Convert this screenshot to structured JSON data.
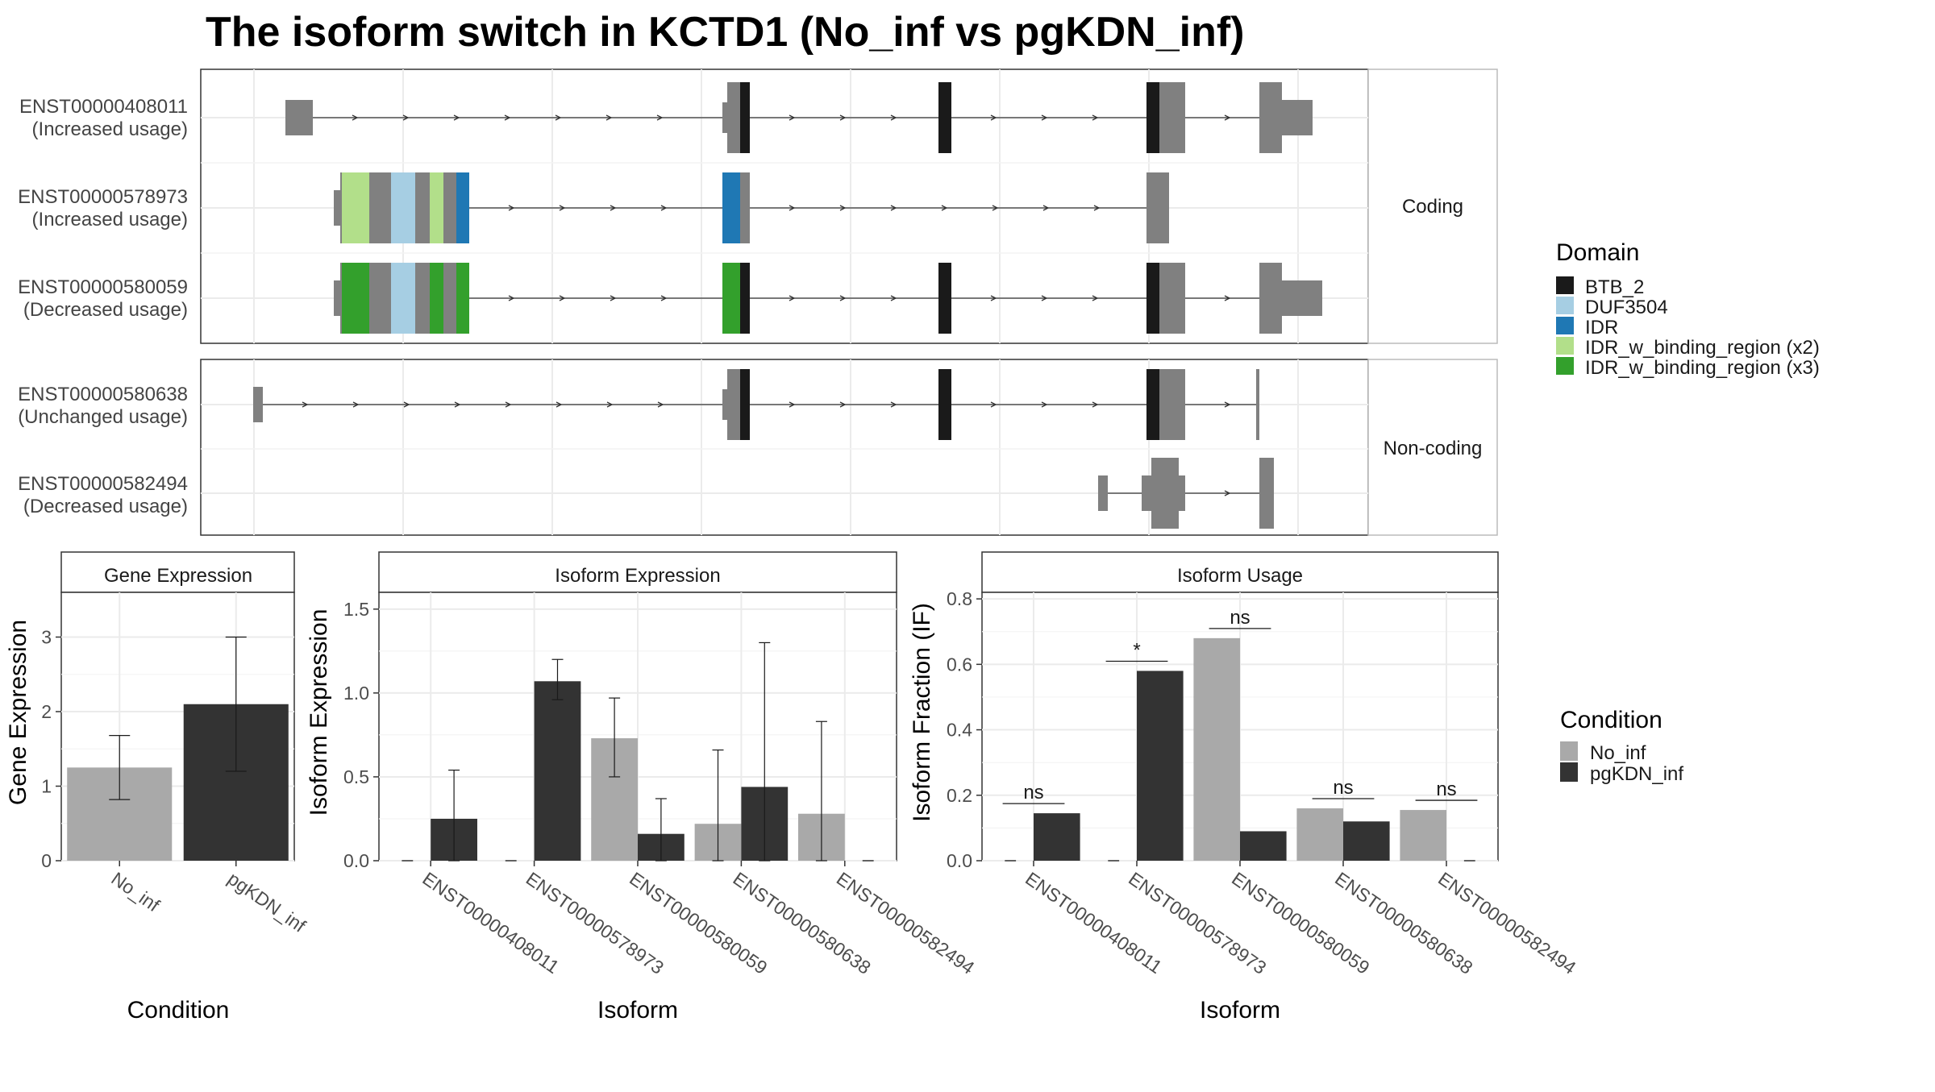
{
  "title": "The isoform switch in KCTD1 (No_inf vs pgKDN_inf)",
  "colors": {
    "BTB_2": "#1a1a1a",
    "DUF3504": "#a6cee3",
    "IDR": "#1f78b4",
    "IDR_x2": "#b2df8a",
    "IDR_x3": "#33a02c",
    "utr": "#808080",
    "No_inf": "#a9a9a9",
    "pgKDN_inf": "#333333"
  },
  "structure": {
    "coding_panel_label": "Coding",
    "noncoding_panel_label": "Non-coding",
    "transcripts": [
      {
        "id": "ENST00000408011",
        "usage": "(Increased usage)"
      },
      {
        "id": "ENST00000578973",
        "usage": "(Increased usage)"
      },
      {
        "id": "ENST00000580059",
        "usage": "(Decreased usage)"
      },
      {
        "id": "ENST00000580638",
        "usage": "(Unchanged usage)"
      },
      {
        "id": "ENST00000582494",
        "usage": "(Decreased usage)"
      }
    ]
  },
  "domain_legend": {
    "title": "Domain",
    "items": [
      {
        "label": "BTB_2",
        "color": "#1a1a1a"
      },
      {
        "label": "DUF3504",
        "color": "#a6cee3"
      },
      {
        "label": "IDR",
        "color": "#1f78b4"
      },
      {
        "label": "IDR_w_binding_region (x2)",
        "color": "#b2df8a"
      },
      {
        "label": "IDR_w_binding_region (x3)",
        "color": "#33a02c"
      }
    ]
  },
  "condition_legend": {
    "title": "Condition",
    "items": [
      {
        "label": "No_inf",
        "color": "#a9a9a9"
      },
      {
        "label": "pgKDN_inf",
        "color": "#333333"
      }
    ]
  },
  "chart_data": [
    {
      "type": "bar",
      "title": "Gene Expression",
      "xlabel": "Condition",
      "ylabel": "Gene Expression",
      "ylim": [
        0,
        3.6
      ],
      "yticks": [
        0,
        1,
        2,
        3
      ],
      "categories": [
        "No_inf",
        "pgKDN_inf"
      ],
      "values": [
        1.25,
        2.1
      ],
      "errors": [
        [
          0.82,
          1.68
        ],
        [
          1.2,
          3.0
        ]
      ]
    },
    {
      "type": "bar",
      "title": "Isoform Expression",
      "xlabel": "Isoform",
      "ylabel": "Isoform Expression",
      "ylim": [
        0,
        1.6
      ],
      "yticks": [
        "0.0",
        "0.5",
        "1.0",
        "1.5"
      ],
      "categories": [
        "ENST00000408011",
        "ENST00000578973",
        "ENST00000580059",
        "ENST00000580638",
        "ENST00000582494"
      ],
      "series": [
        {
          "name": "No_inf",
          "values": [
            0.0,
            0.0,
            0.73,
            0.22,
            0.28
          ],
          "errors": [
            [
              0,
              0
            ],
            [
              0,
              0
            ],
            [
              0.5,
              0.97
            ],
            [
              0,
              0.66
            ],
            [
              0,
              0.83
            ]
          ]
        },
        {
          "name": "pgKDN_inf",
          "values": [
            0.25,
            1.07,
            0.16,
            0.44,
            0.0
          ],
          "errors": [
            [
              0,
              0.54
            ],
            [
              0.96,
              1.2
            ],
            [
              0,
              0.37
            ],
            [
              0,
              1.3
            ],
            [
              0,
              0
            ]
          ]
        }
      ]
    },
    {
      "type": "bar",
      "title": "Isoform Usage",
      "xlabel": "Isoform",
      "ylabel": "Isoform Fraction (IF)",
      "ylim": [
        0,
        0.82
      ],
      "yticks": [
        "0.0",
        "0.2",
        "0.4",
        "0.6",
        "0.8"
      ],
      "categories": [
        "ENST00000408011",
        "ENST00000578973",
        "ENST00000580059",
        "ENST00000580638",
        "ENST00000582494"
      ],
      "series": [
        {
          "name": "No_inf",
          "values": [
            0.0,
            0.0,
            0.68,
            0.16,
            0.155
          ]
        },
        {
          "name": "pgKDN_inf",
          "values": [
            0.145,
            0.58,
            0.09,
            0.12,
            0.0
          ]
        }
      ],
      "significance": [
        "ns",
        "*",
        "ns",
        "ns",
        "ns"
      ]
    }
  ]
}
